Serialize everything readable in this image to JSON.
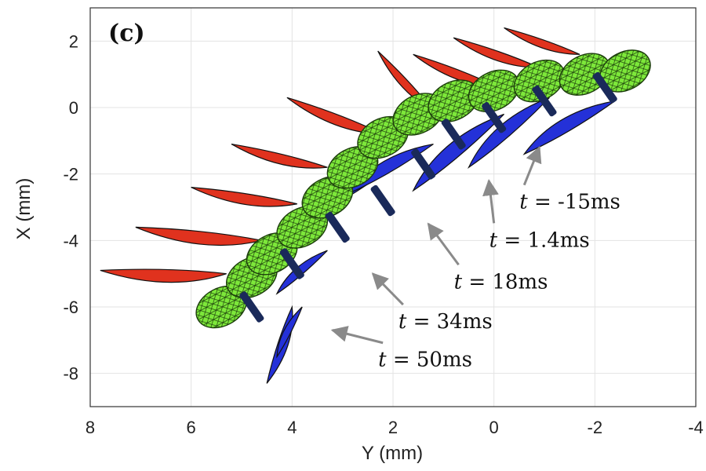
{
  "chart_data": {
    "type": "scatter",
    "panel_label": "(c)",
    "xlabel": "Y (mm)",
    "ylabel": "X (mm)",
    "xlim": [
      8,
      -4
    ],
    "ylim": [
      -9,
      3
    ],
    "x_ticks": [
      "8",
      "6",
      "4",
      "2",
      "0",
      "-2",
      "-4"
    ],
    "y_ticks": [
      "2",
      "0",
      "-2",
      "-4",
      "-6",
      "-8"
    ],
    "grid": true,
    "colors": {
      "body": "#7de83a",
      "body_mesh": "#1c3d0c",
      "wing_upper": "#e0321e",
      "wing_lower": "#2431d8",
      "band": "#1a2a5a",
      "arrow": "#8a8a8a"
    },
    "series": [
      {
        "x": [
          5.4,
          4.8,
          4.4,
          3.8,
          3.3,
          2.8,
          2.2,
          1.5,
          0.8,
          0.0,
          -0.9,
          -1.8,
          -2.6
        ],
        "y": [
          -6.0,
          -5.1,
          -4.4,
          -3.6,
          -2.7,
          -1.8,
          -0.9,
          -0.2,
          0.2,
          0.5,
          0.8,
          1.0,
          1.1
        ]
      }
    ],
    "wings_upper": [
      [
        [
          7.8,
          -4.9
        ],
        [
          5.3,
          -5.0
        ]
      ],
      [
        [
          7.1,
          -3.6
        ],
        [
          4.6,
          -4.0
        ]
      ],
      [
        [
          6.0,
          -2.4
        ],
        [
          3.9,
          -2.9
        ]
      ],
      [
        [
          5.2,
          -1.1
        ],
        [
          3.3,
          -1.8
        ]
      ],
      [
        [
          4.1,
          0.3
        ],
        [
          2.2,
          -0.8
        ]
      ],
      [
        [
          2.3,
          1.7
        ],
        [
          1.2,
          -0.1
        ]
      ],
      [
        [
          1.6,
          1.6
        ],
        [
          -0.1,
          0.6
        ]
      ],
      [
        [
          0.8,
          2.1
        ],
        [
          -0.9,
          1.2
        ]
      ],
      [
        [
          -0.2,
          2.4
        ],
        [
          -1.7,
          1.6
        ]
      ]
    ],
    "wings_lower": [
      [
        [
          4.5,
          -8.3
        ],
        [
          4.0,
          -6.0
        ]
      ],
      [
        [
          3.8,
          -6.0
        ],
        [
          4.3,
          -7.5
        ]
      ],
      [
        [
          3.3,
          -4.3
        ],
        [
          4.3,
          -5.6
        ]
      ],
      [
        [
          2.4,
          -2.2
        ],
        [
          3.8,
          -3.4
        ]
      ],
      [
        [
          1.2,
          -1.1
        ],
        [
          2.9,
          -2.6
        ]
      ],
      [
        [
          -0.2,
          -0.2
        ],
        [
          1.6,
          -2.5
        ]
      ],
      [
        [
          -1.1,
          0.3
        ],
        [
          0.5,
          -1.8
        ]
      ],
      [
        [
          -2.4,
          0.2
        ],
        [
          -0.6,
          -1.4
        ]
      ]
    ],
    "bands": [
      [
        4.8,
        -6.0
      ],
      [
        4.0,
        -4.7
      ],
      [
        3.1,
        -3.6
      ],
      [
        2.2,
        -2.8
      ],
      [
        1.4,
        -1.7
      ],
      [
        0.8,
        -0.8
      ],
      [
        0.0,
        -0.3
      ],
      [
        -1.0,
        0.2
      ],
      [
        -2.2,
        0.6
      ]
    ],
    "annotations": [
      {
        "label_prefix": "t",
        "label": " = -15ms",
        "text": [
          -0.6,
          -2.85
        ],
        "head": [
          -0.9,
          -1.2
        ]
      },
      {
        "label_prefix": "t",
        "label": " = 1.4ms",
        "text": [
          0.0,
          -4.0
        ],
        "head": [
          0.1,
          -2.2
        ]
      },
      {
        "label_prefix": "t",
        "label": " = 18ms",
        "text": [
          0.7,
          -5.25
        ],
        "head": [
          1.3,
          -3.5
        ]
      },
      {
        "label_prefix": "t",
        "label": " = 34ms",
        "text": [
          1.8,
          -6.45
        ],
        "head": [
          2.4,
          -5.0
        ]
      },
      {
        "label_prefix": "t",
        "label": " = 50ms",
        "text": [
          2.2,
          -7.6
        ],
        "head": [
          3.2,
          -6.7
        ]
      }
    ]
  }
}
